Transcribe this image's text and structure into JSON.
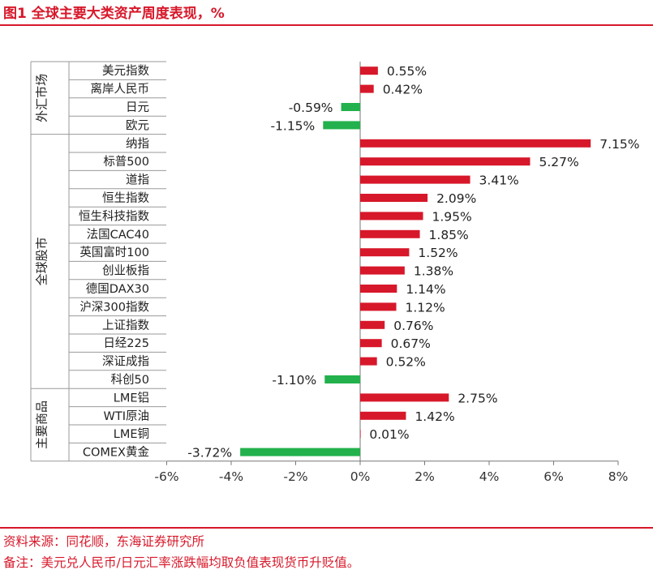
{
  "figure": {
    "title": "图1  全球主要大类资产周度表现，%",
    "source": "资料来源：同花顺，东海证券研究所",
    "note": "备注：美元兑人民币/日元汇率涨跌幅均取负值表现货币升贬值。"
  },
  "colors": {
    "positive": "#d7182a",
    "negative": "#22b14c",
    "accent": "#d7182a"
  },
  "chart_data": {
    "type": "bar",
    "orientation": "horizontal",
    "title": "图1  全球主要大类资产周度表现，%",
    "xlabel": "",
    "ylabel": "",
    "xlim": [
      -6,
      8
    ],
    "xticks": [
      -6,
      -4,
      -2,
      0,
      2,
      4,
      6,
      8
    ],
    "xtick_labels": [
      "-6%",
      "-4%",
      "-2%",
      "0%",
      "2%",
      "4%",
      "6%",
      "8%"
    ],
    "grid": false,
    "categories": [
      "美元指数",
      "离岸人民币",
      "日元",
      "欧元",
      "纳指",
      "标普500",
      "道指",
      "恒生指数",
      "恒生科技指数",
      "法国CAC40",
      "英国富时100",
      "创业板指",
      "德国DAX30",
      "沪深300指数",
      "上证指数",
      "日经225",
      "深证成指",
      "科创50",
      "LME铝",
      "WTI原油",
      "LME铜",
      "COMEX黄金"
    ],
    "values": [
      0.55,
      0.42,
      -0.59,
      -1.15,
      7.15,
      5.27,
      3.41,
      2.09,
      1.95,
      1.85,
      1.52,
      1.38,
      1.14,
      1.12,
      0.76,
      0.67,
      0.52,
      -1.1,
      2.75,
      1.42,
      0.01,
      -3.72
    ],
    "value_labels": [
      "0.55%",
      "0.42%",
      "-0.59%",
      "-1.15%",
      "7.15%",
      "5.27%",
      "3.41%",
      "2.09%",
      "1.95%",
      "1.85%",
      "1.52%",
      "1.38%",
      "1.14%",
      "1.12%",
      "0.76%",
      "0.67%",
      "0.52%",
      "-1.10%",
      "2.75%",
      "1.42%",
      "0.01%",
      "-3.72%"
    ],
    "groups": [
      {
        "label": "外汇市场",
        "start": 0,
        "end": 3
      },
      {
        "label": "全球股市",
        "start": 4,
        "end": 17
      },
      {
        "label": "主要商品",
        "start": 18,
        "end": 21
      }
    ]
  }
}
